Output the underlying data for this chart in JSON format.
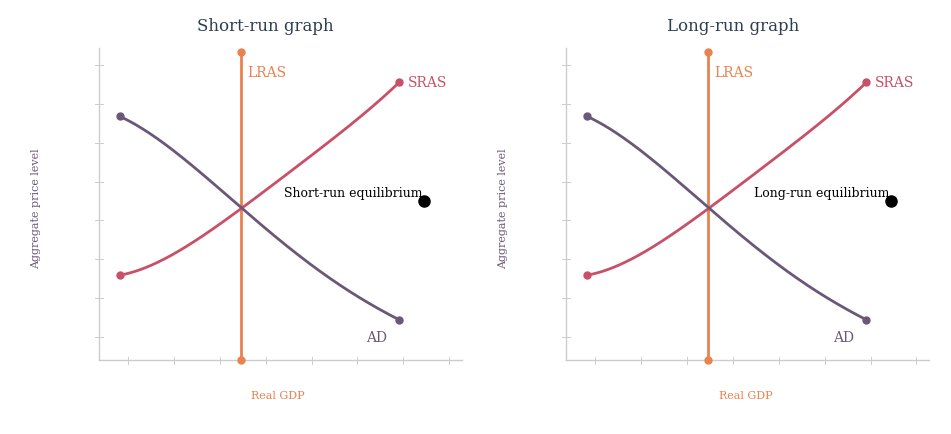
{
  "fig_width": 9.51,
  "fig_height": 4.35,
  "panels": [
    {
      "title": "Short-run graph",
      "equil_label": "Short-run equilibrium"
    },
    {
      "title": "Long-run graph",
      "equil_label": "Long-run equilibrium"
    }
  ],
  "xlabel": "Real GDP",
  "ylabel": "Aggregate price level",
  "lras_label": "LRAS",
  "sras_label": "SRAS",
  "ad_label": "AD",
  "lras_color": "#E8824E",
  "sras_color": "#C85068",
  "ad_color": "#6B5878",
  "title_color": "#2c3e50",
  "axis_color": "#cccccc",
  "xlabel_color": "#E8824E",
  "ylabel_color": "#6B5878",
  "title_fontsize": 12,
  "label_fontsize": 10,
  "axis_label_fontsize": 8,
  "equil_fontsize": 9
}
